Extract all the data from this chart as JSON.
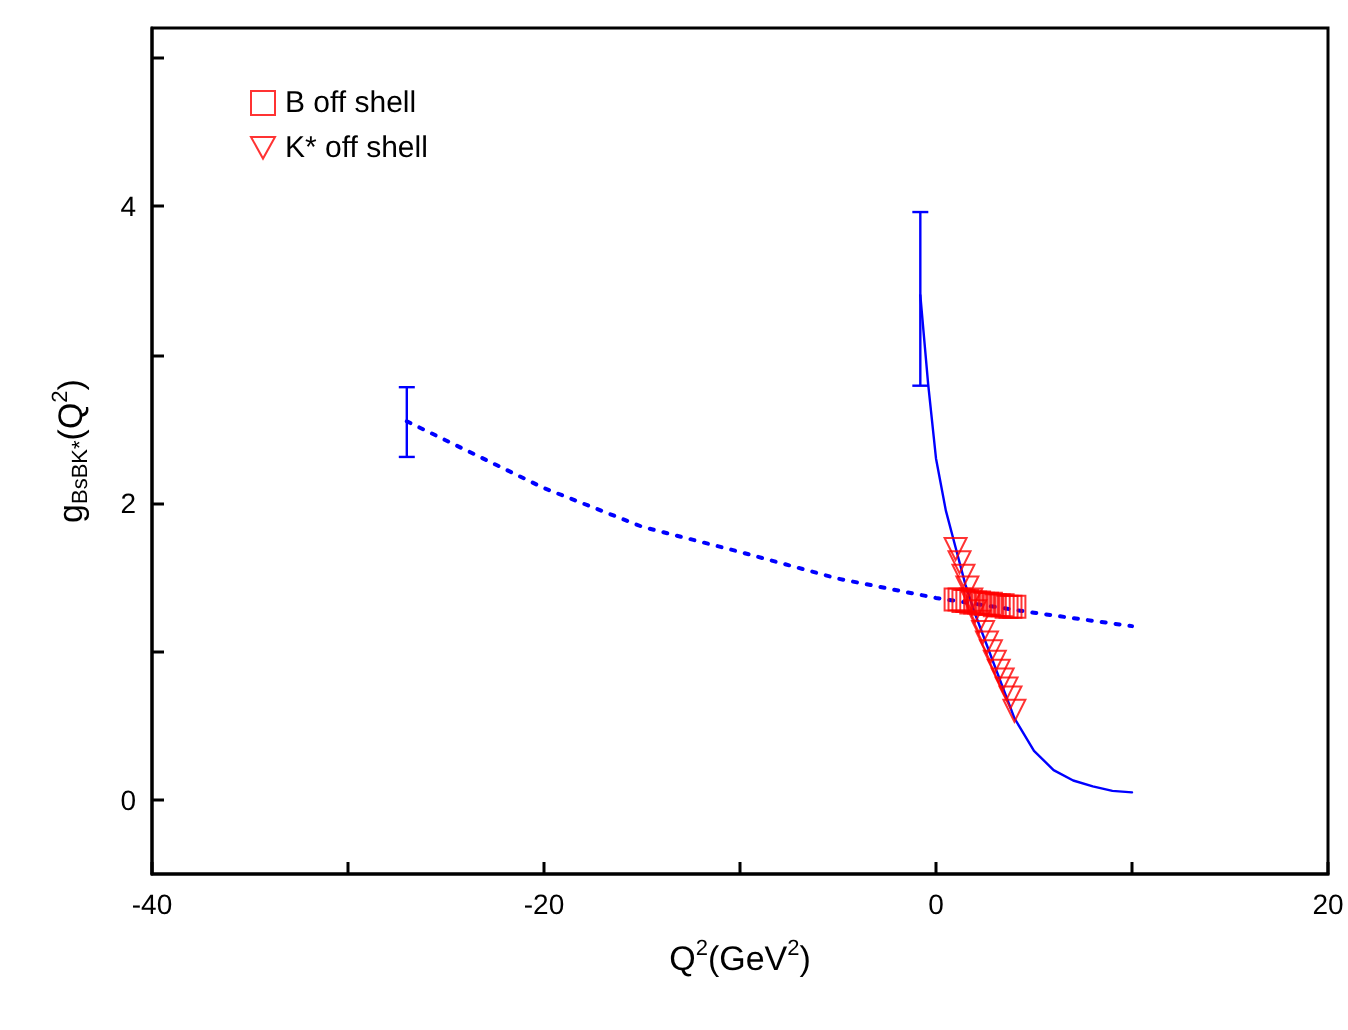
{
  "chart_data": {
    "type": "line",
    "xlabel": "Q$^{2}$(GeV$^{2}$)",
    "ylabel": "g$_{BsBK*}$(Q$^{2}$)",
    "xlim": [
      -40,
      20
    ],
    "ylim": [
      -0.5,
      5.2
    ],
    "xticks": [
      -40,
      {
        "value": -30,
        "label": null
      },
      -20,
      {
        "value": -10,
        "label": null
      },
      0,
      {
        "value": 10,
        "label": null
      },
      20
    ],
    "yticks": [
      0,
      {
        "value": 1,
        "label": null
      },
      2,
      {
        "value": 3,
        "label": null
      },
      4,
      {
        "value": 5,
        "label": null
      }
    ],
    "grid": false,
    "legend": "top left",
    "series": [
      {
        "color": "#0000ff",
        "line_style": "solid",
        "marker": "none",
        "x": [
          -0.8,
          -0.4,
          0,
          0.5,
          1,
          1.5,
          2,
          3,
          4,
          5,
          6,
          7,
          8,
          9,
          10
        ],
        "values": [
          3.4,
          2.8,
          2.3,
          1.95,
          1.7,
          1.45,
          1.25,
          0.9,
          0.55,
          0.33,
          0.2,
          0.13,
          0.09,
          0.06,
          0.05
        ],
        "errors": [
          [
            2.79,
            3.96
          ],
          null,
          null,
          null,
          null,
          null,
          null,
          null,
          null,
          null,
          null,
          null,
          null,
          null,
          null
        ]
      },
      {
        "color": "#0000ff",
        "line_style": "dotted",
        "marker": "none",
        "x": [
          -27,
          -20,
          -15,
          -10,
          -5,
          0,
          5,
          10
        ],
        "values": [
          2.55,
          2.1,
          1.84,
          1.67,
          1.49,
          1.36,
          1.26,
          1.17
        ],
        "errors": [
          [
            2.31,
            2.78
          ],
          null,
          null,
          null,
          null,
          null,
          null,
          null
        ]
      },
      {
        "type": "scatter",
        "name": "B off shell",
        "color": "#ff0000",
        "marker": "square",
        "x": [
          1,
          1.2,
          1.4,
          1.6,
          1.8,
          2,
          2.2,
          2.4,
          2.6,
          2.8,
          3,
          3.2,
          3.4,
          3.6,
          3.8,
          4
        ],
        "values": [
          1.35,
          1.35,
          1.34,
          1.34,
          1.33,
          1.33,
          1.33,
          1.32,
          1.32,
          1.32,
          1.31,
          1.31,
          1.31,
          1.3,
          1.3,
          1.3
        ]
      },
      {
        "type": "scatter",
        "name": "K* off shell",
        "color": "#ff0000",
        "marker": "triangle_down",
        "x": [
          1,
          1.2,
          1.4,
          1.6,
          1.8,
          2,
          2.2,
          2.4,
          2.6,
          2.8,
          3,
          3.2,
          3.4,
          3.6,
          3.8,
          4
        ],
        "values": [
          1.69,
          1.6,
          1.51,
          1.43,
          1.35,
          1.27,
          1.2,
          1.13,
          1.06,
          1.0,
          0.93,
          0.87,
          0.81,
          0.75,
          0.69,
          0.6
        ]
      }
    ]
  }
}
